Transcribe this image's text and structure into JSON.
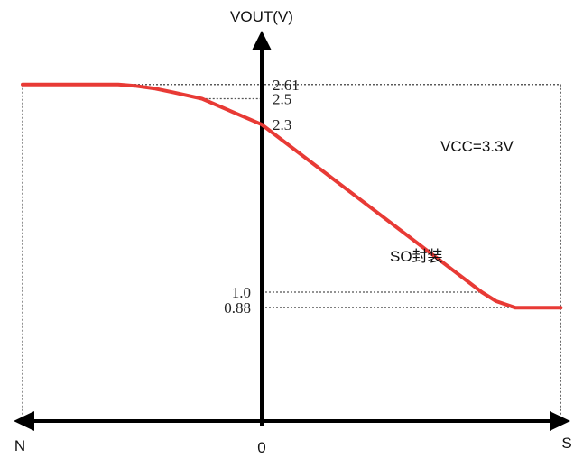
{
  "chart_data": {
    "type": "line",
    "ylabel": "VOUT(V)",
    "x_negative_label": "N",
    "x_positive_label": "S",
    "x_origin_label": "0",
    "annotation": "VCC=3.3V",
    "series": [
      {
        "name": "SO封装",
        "points": [
          [
            -1.0,
            2.61
          ],
          [
            -0.6,
            2.61
          ],
          [
            -0.53,
            2.6
          ],
          [
            -0.45,
            2.58
          ],
          [
            -0.37,
            2.55
          ],
          [
            -0.25,
            2.5
          ],
          [
            0.0,
            2.3
          ],
          [
            0.92,
            1.0
          ],
          [
            0.98,
            0.93
          ],
          [
            1.06,
            0.88
          ],
          [
            1.25,
            0.88
          ]
        ]
      }
    ],
    "y_ticks": [
      {
        "value": 2.61,
        "label": "2.61"
      },
      {
        "value": 2.5,
        "label": "2.5"
      },
      {
        "value": 2.3,
        "label": "2.3"
      },
      {
        "value": 1.0,
        "label": "1.0"
      },
      {
        "value": 0.88,
        "label": "0.88"
      }
    ],
    "guides": [
      {
        "y": 2.61,
        "x_from": -1.0,
        "x_to": 1.25
      },
      {
        "y": 2.5,
        "x_from": -0.25,
        "x_to": 0.0
      },
      {
        "y": 1.0,
        "x_from": 0.0,
        "x_to": 0.92
      },
      {
        "y": 0.88,
        "x_from": 0.0,
        "x_to": 1.08
      }
    ],
    "frame": {
      "left": -1.0,
      "right": 1.25,
      "top": 2.61
    },
    "xlim": [
      -1.0,
      1.25
    ],
    "ylim": [
      0,
      2.61
    ],
    "line_color": "#e83a35",
    "axis_color": "#000000",
    "guide_color": "#555555"
  }
}
